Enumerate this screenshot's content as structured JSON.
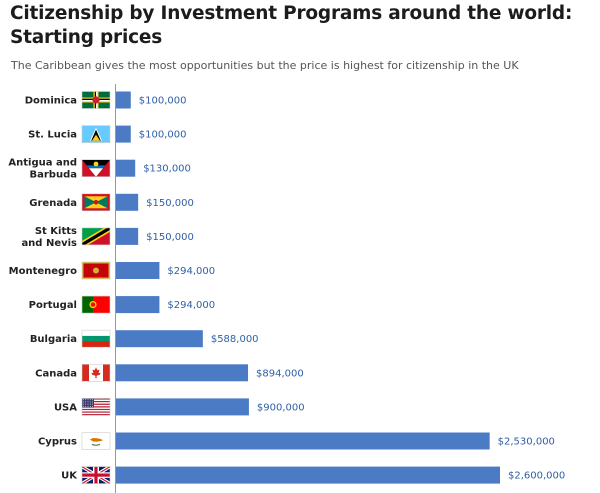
{
  "header": {
    "title": "Citizenship by Investment Programs around the world: Starting prices",
    "subtitle": "The Caribbean gives the most opportunities but the price is highest for citizenship in the UK"
  },
  "chart_data": {
    "type": "bar",
    "orientation": "horizontal",
    "title": "Citizenship by Investment Programs around the world: Starting prices",
    "subtitle": "The Caribbean gives the most opportunities but the price is highest for citizenship in the UK",
    "categories": [
      "Dominica",
      "St. Lucia",
      "Antigua and Barbuda",
      "Grenada",
      "St Kitts and Nevis",
      "Montenegro",
      "Portugal",
      "Bulgaria",
      "Canada",
      "USA",
      "Cyprus",
      "UK"
    ],
    "category_lines": [
      [
        "Dominica"
      ],
      [
        "St. Lucia"
      ],
      [
        "Antigua and",
        "Barbuda"
      ],
      [
        "Grenada"
      ],
      [
        "St Kitts",
        "and Nevis"
      ],
      [
        "Montenegro"
      ],
      [
        "Portugal"
      ],
      [
        "Bulgaria"
      ],
      [
        "Canada"
      ],
      [
        "USA"
      ],
      [
        "Cyprus"
      ],
      [
        "UK"
      ]
    ],
    "values": [
      100000,
      100000,
      130000,
      150000,
      150000,
      294000,
      294000,
      588000,
      894000,
      900000,
      2530000,
      2600000
    ],
    "value_labels": [
      "$100,000",
      "$100,000",
      "$130,000",
      "$150,000",
      "$150,000",
      "$294,000",
      "$294,000",
      "$588,000",
      "$894,000",
      "$900,000",
      "$2,530,000",
      "$2,600,000"
    ],
    "flags": [
      "dominica",
      "st-lucia",
      "antigua-and-barbuda",
      "grenada",
      "st-kitts-and-nevis",
      "montenegro",
      "portugal",
      "bulgaria",
      "canada",
      "usa",
      "cyprus",
      "uk"
    ],
    "xlim": [
      0,
      2600000
    ],
    "grid": false,
    "legend": "none",
    "colors": {
      "bar": "#4a7bc4",
      "value_label": "#2f5fa7",
      "axis": "#999999"
    }
  }
}
